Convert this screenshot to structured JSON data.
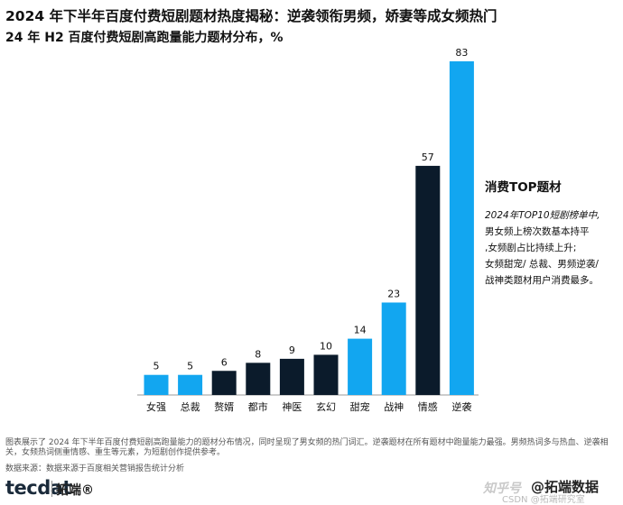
{
  "header": {
    "title": "2024 年下半年百度付费短剧题材热度揭秘：逆袭领衔男频，娇妻等成女频热门",
    "subtitle": "24 年 H2 百度付费短剧高跑量能力题材分布，%"
  },
  "chart_data": {
    "type": "bar",
    "categories": [
      "女强",
      "总裁",
      "赘婿",
      "都市",
      "神医",
      "玄幻",
      "甜宠",
      "战神",
      "情感",
      "逆袭"
    ],
    "values": [
      5,
      5,
      6,
      8,
      9,
      10,
      14,
      23,
      57,
      83
    ],
    "genre": [
      "female",
      "female",
      "male",
      "male",
      "male",
      "male",
      "female",
      "female",
      "male",
      "female"
    ],
    "title": "24 年 H2 百度付费短剧高跑量能力题材分布，%",
    "xlabel": "",
    "ylabel": "",
    "ylim": [
      0,
      86
    ],
    "grid": false,
    "colors": {
      "female": "#12a6f0",
      "male": "#0b1b2b"
    }
  },
  "sidebar": {
    "title": "消费TOP题材",
    "lines": [
      "2024年TOP10短剧榜单中,",
      "男女频上榜次数基本持平",
      ",女频剧占比持续上升;",
      "女频甜宠/ 总裁、男频逆袭/",
      "战神类题材用户消费最多。"
    ]
  },
  "caption": "图表展示了 2024 年下半年百度付费短剧高跑量能力的题材分布情况，同时呈现了男女频的热门词汇。逆袭题材在所有题材中跑量能力最强。男频热词多与热血、逆袭相关，女频热词侧重情感、重生等元素，为短剧创作提供参考。",
  "source": "数据来源：数据来源于百度相关营销报告统计分析",
  "footer": {
    "logo": "tecdat",
    "brand": "拓端®",
    "watermark_left": "知乎号",
    "watermark_right": "@拓端数据",
    "watermark_small": "CSDN @拓端研究室"
  }
}
